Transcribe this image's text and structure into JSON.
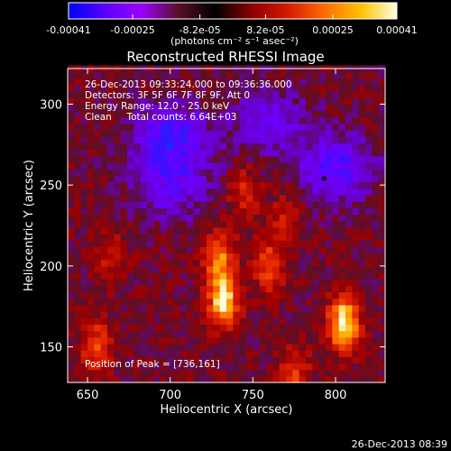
{
  "colorbar": {
    "tick_labels": [
      "-0.00041",
      "-0.00025",
      "-8.2e-05",
      "8.2e-05",
      "0.00025",
      "0.00041"
    ],
    "tick_values": [
      -0.00041,
      -0.00025,
      -8.2e-05,
      8.2e-05,
      0.00025,
      0.00041
    ],
    "range": [
      -0.00041,
      0.00041
    ],
    "unit_label": "(photons cm⁻² s⁻¹ asec⁻²)",
    "colors": [
      "#0000ff",
      "#5a00ff",
      "#9b00ff",
      "#5a0f2a",
      "#000000",
      "#8a0000",
      "#d61800",
      "#ff6a00",
      "#ffc000",
      "#ffffe0"
    ]
  },
  "plot": {
    "title": "Reconstructed RHESSI Image",
    "xlabel": "Heliocentric X (arcsec)",
    "ylabel": "Heliocentric Y (arcsec)",
    "x_ticks": [
      "650",
      "700",
      "750",
      "800"
    ],
    "y_ticks": [
      "150",
      "200",
      "250",
      "300"
    ],
    "x_tick_values": [
      650,
      700,
      750,
      800
    ],
    "y_tick_values": [
      150,
      200,
      250,
      300
    ],
    "xlim": [
      638,
      830
    ],
    "ylim": [
      128,
      322
    ],
    "annotations": [
      "26-Dec-2013 09:33:24.000 to 09:36:36.000",
      "Detectors: 3F 5F 6F 7F 8F 9F, Att 0",
      "Energy Range: 12.0 - 25.0 keV",
      "Clean     Total counts: 6.64E+03"
    ],
    "peak_label": "Position of Peak = [736,161]"
  },
  "footer": {
    "timestamp": "26-Dec-2013 08:39"
  },
  "chart_data": {
    "type": "heatmap",
    "title": "Reconstructed RHESSI Image",
    "xlabel": "Heliocentric X (arcsec)",
    "ylabel": "Heliocentric Y (arcsec)",
    "xlim": [
      638,
      830
    ],
    "ylim": [
      128,
      322
    ],
    "x_ticks": [
      650,
      700,
      750,
      800
    ],
    "y_ticks": [
      150,
      200,
      250,
      300
    ],
    "colorbar_range": [
      -0.00041,
      0.00041
    ],
    "peak_position": [
      736,
      161
    ],
    "bright_sources": [
      {
        "x": 805,
        "y": 165,
        "intensity": 1.0
      },
      {
        "x": 732,
        "y": 178,
        "intensity": 0.9
      },
      {
        "x": 730,
        "y": 205,
        "intensity": 0.65
      },
      {
        "x": 655,
        "y": 150,
        "intensity": 0.55
      },
      {
        "x": 760,
        "y": 200,
        "intensity": 0.55
      },
      {
        "x": 775,
        "y": 135,
        "intensity": 0.45
      },
      {
        "x": 745,
        "y": 245,
        "intensity": 0.35
      },
      {
        "x": 770,
        "y": 230,
        "intensity": 0.3
      },
      {
        "x": 665,
        "y": 205,
        "intensity": 0.3
      }
    ],
    "dark_sources": [
      {
        "x": 700,
        "y": 280,
        "intensity": 0.6
      },
      {
        "x": 800,
        "y": 260,
        "intensity": 0.55
      },
      {
        "x": 760,
        "y": 290,
        "intensity": 0.4
      },
      {
        "x": 700,
        "y": 250,
        "intensity": 0.4
      }
    ]
  }
}
